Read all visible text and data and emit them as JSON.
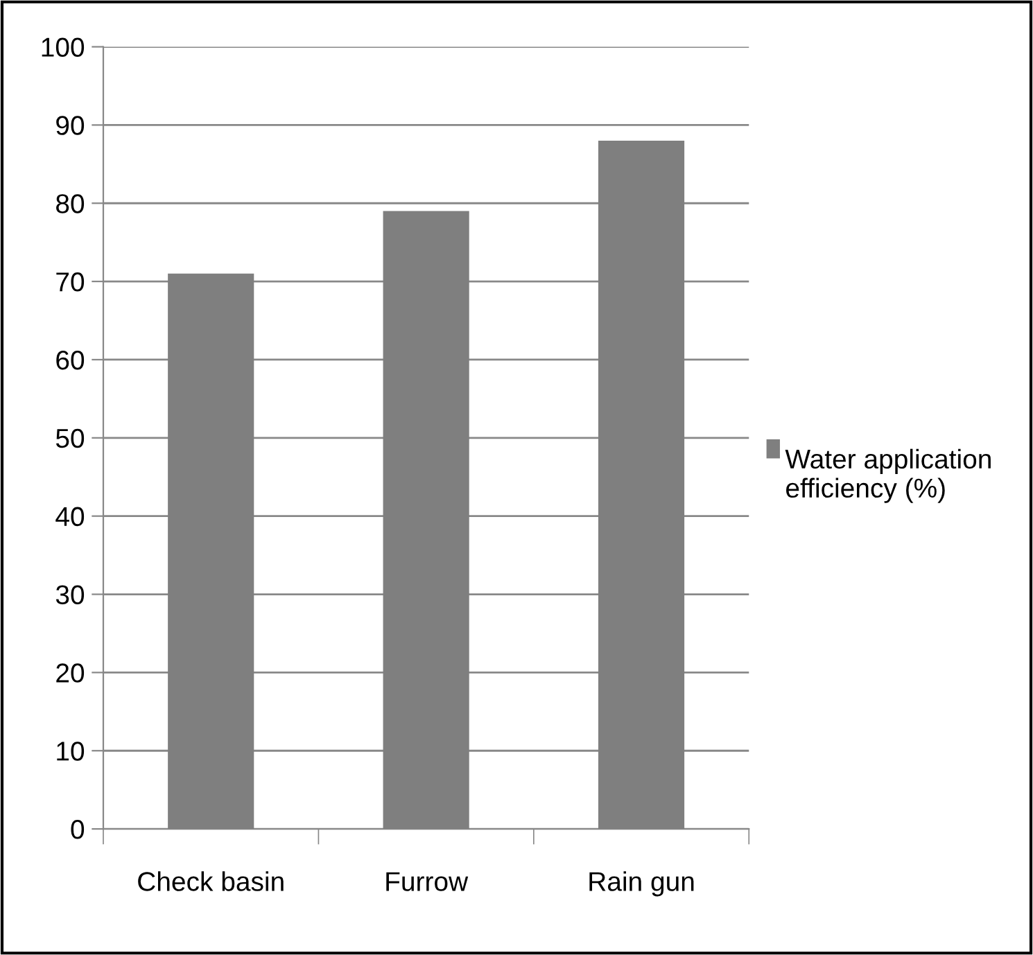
{
  "chart_data": {
    "type": "bar",
    "categories": [
      "Check basin",
      "Furrow",
      "Rain gun"
    ],
    "series": [
      {
        "name": "Water application efficiency (%)",
        "color": "#7f7f7f",
        "values": [
          71,
          79,
          88
        ]
      }
    ],
    "ylim": [
      0,
      100
    ],
    "yticks": [
      0,
      10,
      20,
      30,
      40,
      50,
      60,
      70,
      80,
      90,
      100
    ],
    "grid": "y",
    "legend": "right"
  }
}
